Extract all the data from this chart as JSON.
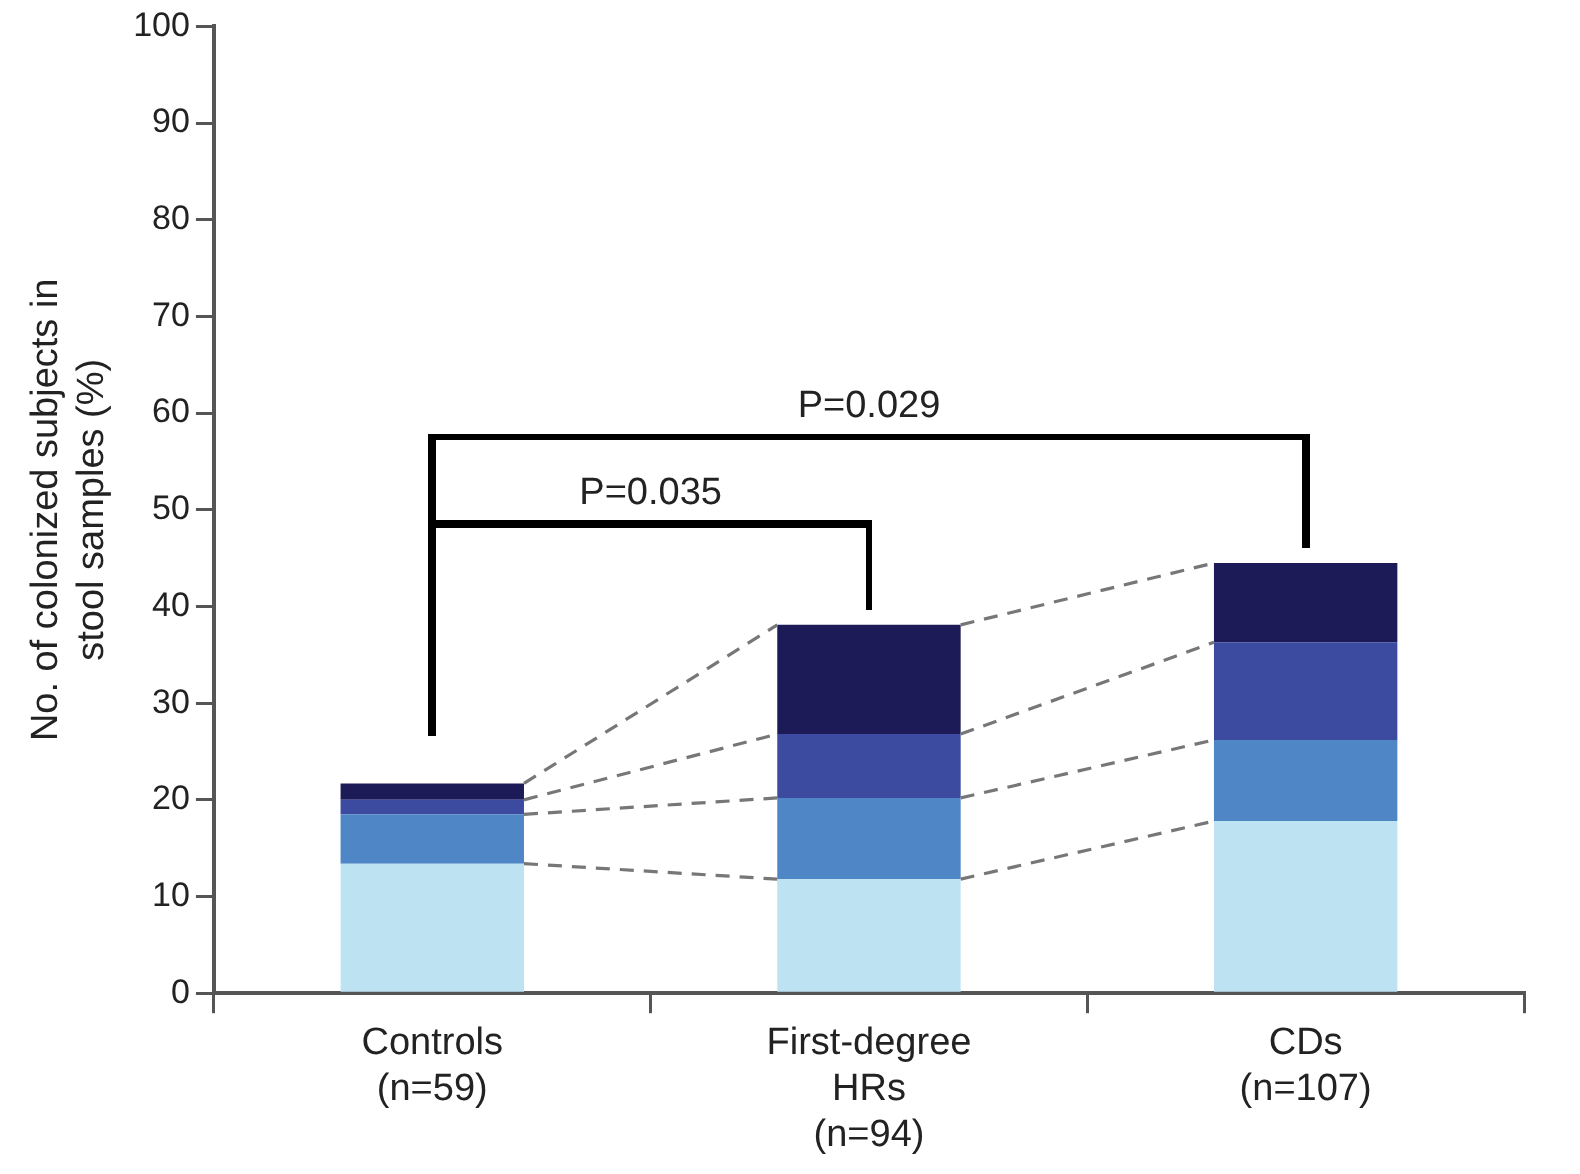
{
  "chart_data": {
    "type": "bar",
    "stacked": true,
    "ylabel": "No. of colonized subjects in\nstool samples (%)",
    "categories": [
      "Controls\n(n=59)",
      "First-degree\nHRs\n(n=94)",
      "CDs\n(n=107)"
    ],
    "series": [
      {
        "color": "#bde3f3",
        "values": [
          13.4,
          11.8,
          17.8
        ]
      },
      {
        "color": "#4f86c6",
        "values": [
          5.1,
          8.4,
          8.4
        ]
      },
      {
        "color": "#3c4ba0",
        "values": [
          1.5,
          6.6,
          10.1
        ]
      },
      {
        "color": "#1c1b57",
        "values": [
          1.7,
          11.3,
          8.2
        ]
      }
    ],
    "ylim": [
      0,
      100
    ],
    "yticks": [
      0,
      10,
      20,
      30,
      40,
      50,
      60,
      70,
      80,
      90,
      100
    ],
    "grid": false,
    "legend": false,
    "annotations": [
      "P=0.035",
      "P=0.029"
    ]
  }
}
